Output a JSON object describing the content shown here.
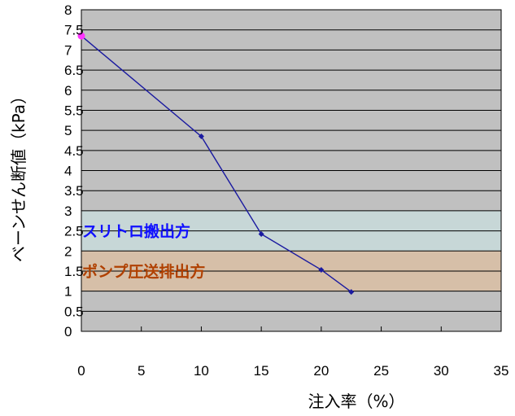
{
  "chart_data": {
    "type": "line",
    "title": "",
    "xlabel": "注入率（%）",
    "ylabel": "ベーンせん断値（kPa）",
    "xlim": [
      0,
      35
    ],
    "ylim": [
      0,
      8
    ],
    "x_ticks": [
      "0",
      "5",
      "10",
      "15",
      "20",
      "25",
      "30",
      "35"
    ],
    "y_ticks": [
      "0",
      "0.5",
      "1",
      "1.5",
      "2",
      "2.5",
      "3",
      "3.5",
      "4",
      "4.5",
      "5",
      "5.5",
      "6",
      "6.5",
      "7",
      "7.5",
      "8"
    ],
    "grid": true,
    "plot_background": "#c0c0c0",
    "series": [
      {
        "color": "#1a1aa0",
        "points": [
          {
            "x": 0,
            "y": 7.35
          },
          {
            "x": 10,
            "y": 4.85
          },
          {
            "x": 15,
            "y": 2.42
          },
          {
            "x": 20,
            "y": 1.53
          },
          {
            "x": 22.5,
            "y": 0.98
          }
        ]
      }
    ],
    "bands": [
      {
        "label": "スリトロ搬出方",
        "y0": 2,
        "y1": 3,
        "fill": "#c7d7d7",
        "text_color": "#1010ff"
      },
      {
        "label": "ポンプ圧送排出方",
        "y0": 1,
        "y1": 2,
        "fill": "#d6bfa8",
        "text_color": "#b04000"
      }
    ]
  }
}
